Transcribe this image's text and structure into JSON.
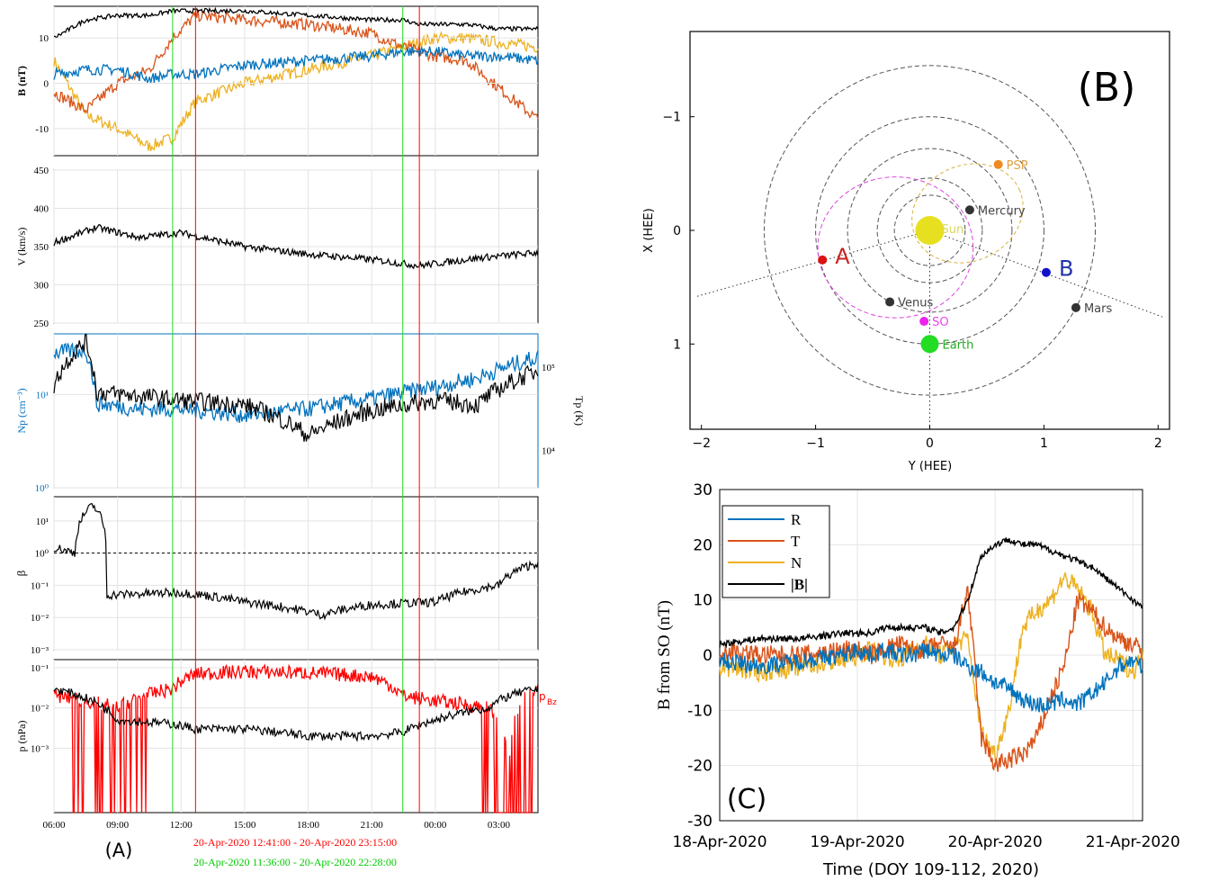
{
  "panel_labels": {
    "A": "(A)",
    "B": "(B)",
    "C": "(C)"
  },
  "a": {
    "b_axis_label": "B (nT)",
    "v_axis_label": "V (km/s)",
    "np_axis_label": "Np (cm⁻³)",
    "tp_axis_label": "Tp (K)",
    "beta_axis_label": "β",
    "p_axis_label": "p (nPa)",
    "pbz_label": "p",
    "pbz_sub": "Bz",
    "time_ticks": [
      "06:00",
      "09:00",
      "12:00",
      "15:00",
      "18:00",
      "21:00",
      "00:00",
      "03:00"
    ],
    "b_ticks": [
      "10",
      "0",
      "-10"
    ],
    "v_ticks": [
      "450",
      "400",
      "350",
      "300",
      "250"
    ],
    "np_ticks": [
      "10¹",
      "10⁰"
    ],
    "tp_ticks": [
      "10⁵",
      "10⁴"
    ],
    "beta_ticks": [
      "10¹",
      "10⁰",
      "10⁻¹",
      "10⁻²",
      "10⁻³"
    ],
    "p_ticks": [
      "10⁻¹",
      "10⁻²",
      "10⁻³"
    ],
    "interval_red": "20-Apr-2020 12:41:00 - 20-Apr-2020 23:15:00",
    "interval_green": "20-Apr-2020 11:36:00 - 20-Apr-2020 22:28:00",
    "colors": {
      "red": "#ff0000",
      "green": "#00cc00",
      "blue": "#0072bd",
      "orange": "#d95319",
      "yellow": "#edb120",
      "black": "#000000"
    }
  },
  "b": {
    "xlabel": "Y (HEE)",
    "ylabel": "X (HEE)",
    "x_ticks": [
      "−2",
      "−1",
      "0",
      "1",
      "2"
    ],
    "y_ticks": [
      "−1",
      "0",
      "1"
    ],
    "objects": [
      {
        "name": "Sun",
        "x": 0,
        "y": 0,
        "color": "#e6e020",
        "label_color": "#d8d860"
      },
      {
        "name": "Mercury",
        "x": 0.35,
        "y": -0.18,
        "color": "#333333",
        "label_color": "#444444"
      },
      {
        "name": "Venus",
        "x": -0.35,
        "y": 0.63,
        "color": "#333333",
        "label_color": "#444444"
      },
      {
        "name": "Earth",
        "x": 0,
        "y": 1.0,
        "color": "#22dd22",
        "label_color": "#22aa22"
      },
      {
        "name": "Mars",
        "x": 1.28,
        "y": 0.68,
        "color": "#333333",
        "label_color": "#444444"
      },
      {
        "name": "PSP",
        "x": 0.6,
        "y": -0.58,
        "color": "#f08a20",
        "label_color": "#e0a040"
      },
      {
        "name": "SO",
        "x": -0.05,
        "y": 0.8,
        "color": "#ee22ee",
        "label_color": "#ee44ee"
      },
      {
        "name": "A",
        "x": -0.94,
        "y": 0.26,
        "color": "#dd1111",
        "label_color": "#cc2222"
      },
      {
        "name": "B",
        "x": 1.02,
        "y": 0.37,
        "color": "#1111cc",
        "label_color": "#2233aa"
      }
    ]
  },
  "c": {
    "ylabel": "B from SO (nT)",
    "xlabel": "Time (DOY 109-112, 2020)",
    "y_ticks": [
      "30",
      "20",
      "10",
      "0",
      "-10",
      "-20",
      "-30"
    ],
    "x_ticks": [
      "18-Apr-2020",
      "19-Apr-2020",
      "20-Apr-2020",
      "21-Apr-2020"
    ],
    "legend": [
      {
        "label": "R",
        "color": "#0072bd"
      },
      {
        "label": "T",
        "color": "#d95319"
      },
      {
        "label": "N",
        "color": "#edb120"
      },
      {
        "label": "|B|",
        "color": "#000000"
      }
    ]
  },
  "chart_data": [
    {
      "type": "line",
      "panel": "A",
      "subplots": [
        {
          "name": "B (nT)",
          "ylim": [
            -16,
            17
          ],
          "x": [
            "06:00",
            "07:30",
            "09:00",
            "10:30",
            "11:36",
            "12:41",
            "15:00",
            "18:00",
            "21:00",
            "22:28",
            "23:15",
            "00:00",
            "01:30",
            "03:00",
            "04:50"
          ],
          "series": [
            {
              "name": "R",
              "values": [
                2,
                3,
                3,
                1,
                2,
                2,
                4,
                5,
                6,
                7,
                7,
                7,
                6,
                6,
                5
              ]
            },
            {
              "name": "T",
              "values": [
                -2,
                -6,
                0,
                3,
                10,
                15,
                14,
                13,
                11,
                8,
                7,
                6,
                5,
                -1,
                -8
              ]
            },
            {
              "name": "N",
              "values": [
                5,
                -7,
                -10,
                -14,
                -12,
                -4,
                0,
                3,
                6,
                8,
                9,
                10,
                10,
                9,
                8
              ]
            },
            {
              "name": "|B|",
              "values": [
                10,
                14,
                15,
                15,
                16,
                16,
                16,
                15,
                14,
                14,
                13,
                13,
                13,
                12,
                12
              ]
            }
          ]
        },
        {
          "name": "V (km/s)",
          "ylim": [
            250,
            450
          ],
          "x": [
            "06:00",
            "08:00",
            "10:00",
            "12:00",
            "15:00",
            "18:00",
            "21:00",
            "23:15",
            "02:00",
            "04:50"
          ],
          "values": [
            355,
            375,
            362,
            368,
            350,
            340,
            333,
            325,
            335,
            342
          ]
        },
        {
          "name": "Np / Tp",
          "x": [
            "06:00",
            "07:30",
            "08:00",
            "10:00",
            "12:00",
            "15:00",
            "18:00",
            "21:00",
            "00:00",
            "02:00",
            "04:50"
          ],
          "series": [
            {
              "name": "Np (cm^-3)",
              "values": [
                28,
                30,
                8,
                7,
                7,
                6,
                7,
                9,
                12,
                15,
                25
              ]
            },
            {
              "name": "Tp (K)",
              "values": [
                60000,
                200000,
                50000,
                45000,
                40000,
                35000,
                15000,
                30000,
                40000,
                35000,
                90000
              ]
            }
          ]
        },
        {
          "name": "beta",
          "x": [
            "06:00",
            "07:00",
            "07:50",
            "08:30",
            "12:00",
            "15:00",
            "18:40",
            "21:00",
            "00:00",
            "03:00",
            "04:50"
          ],
          "values": [
            1.5,
            1,
            30,
            0.05,
            0.06,
            0.03,
            0.012,
            0.025,
            0.03,
            0.1,
            0.5
          ],
          "reference_line": 1
        },
        {
          "name": "p (nPa)",
          "x": [
            "06:00",
            "09:00",
            "11:36",
            "12:41",
            "15:00",
            "18:00",
            "21:00",
            "22:28",
            "00:00",
            "02:30",
            "03:30",
            "04:50"
          ],
          "series": [
            {
              "name": "pBz",
              "values": [
                0.02,
                0.01,
                0.03,
                0.07,
                0.08,
                0.075,
                0.06,
                0.02,
                0.015,
                0.01,
                0.0002,
                0.03
              ]
            },
            {
              "name": "p",
              "values": [
                0.03,
                0.005,
                0.004,
                0.003,
                0.003,
                0.002,
                0.002,
                0.0025,
                0.005,
                0.01,
                0.02,
                0.03
              ]
            }
          ]
        }
      ],
      "vertical_lines": [
        {
          "time": "11:36",
          "color": "green"
        },
        {
          "time": "12:41",
          "color": "red"
        },
        {
          "time": "22:28",
          "color": "green"
        },
        {
          "time": "23:15",
          "color": "red"
        }
      ]
    },
    {
      "type": "scatter",
      "panel": "B",
      "xlabel": "Y (HEE)",
      "ylabel": "X (HEE)",
      "xlim": [
        -2.1,
        2.1
      ],
      "ylim": [
        -1.75,
        1.75
      ],
      "y_inverted": true,
      "points": [
        {
          "name": "Sun",
          "x": 0,
          "y": 0
        },
        {
          "name": "Mercury",
          "x": 0.35,
          "y": -0.18
        },
        {
          "name": "Venus",
          "x": -0.35,
          "y": 0.63
        },
        {
          "name": "Earth",
          "x": 0,
          "y": 1.0
        },
        {
          "name": "Mars",
          "x": 1.28,
          "y": 0.68
        },
        {
          "name": "PSP",
          "x": 0.6,
          "y": -0.58
        },
        {
          "name": "SO",
          "x": -0.05,
          "y": 0.8
        },
        {
          "name": "A",
          "x": -0.94,
          "y": 0.26
        },
        {
          "name": "B",
          "x": 1.02,
          "y": 0.37
        }
      ]
    },
    {
      "type": "line",
      "panel": "C",
      "xlabel": "Time (DOY 109-112, 2020)",
      "ylabel": "B from SO (nT)",
      "ylim": [
        -30,
        30
      ],
      "categories": [
        "18-Apr-2020",
        "19-Apr-2020",
        "20-Apr-2020",
        "21-Apr-2020"
      ],
      "x": [
        0,
        0.3,
        0.6,
        0.9,
        1.0,
        1.1,
        1.2,
        1.3,
        1.4,
        1.5,
        1.6,
        1.7,
        1.8,
        1.9,
        2.0,
        2.1,
        2.2,
        2.3,
        2.4,
        2.5,
        2.6,
        2.7,
        2.8,
        2.9,
        3.0,
        3.1
      ],
      "series": [
        {
          "name": "R",
          "values": [
            -1,
            -2,
            -1,
            0,
            1,
            0,
            1,
            0,
            0,
            1,
            0,
            0,
            -2,
            -3,
            -5,
            -6,
            -8,
            -9,
            -9,
            -8,
            -9,
            -7,
            -5,
            -2,
            -1,
            -3
          ]
        },
        {
          "name": "T",
          "values": [
            1,
            0,
            0,
            1,
            1,
            0,
            1,
            2,
            1,
            1,
            2,
            1,
            12,
            -15,
            -20,
            -19,
            -18,
            -15,
            -8,
            -2,
            10,
            8,
            5,
            3,
            2,
            0
          ]
        },
        {
          "name": "N",
          "values": [
            -2,
            -3,
            -2,
            -1,
            0,
            1,
            0,
            -1,
            1,
            2,
            0,
            2,
            3,
            -14,
            -18,
            -10,
            5,
            8,
            10,
            14,
            12,
            8,
            0,
            -1,
            -3,
            1
          ]
        },
        {
          "name": "|B|",
          "values": [
            2,
            3,
            3,
            4,
            4,
            4,
            5,
            5,
            5,
            5,
            4,
            5,
            10,
            18,
            20,
            21,
            20,
            20,
            19,
            18,
            17,
            16,
            14,
            12,
            10,
            8
          ]
        }
      ]
    }
  ]
}
